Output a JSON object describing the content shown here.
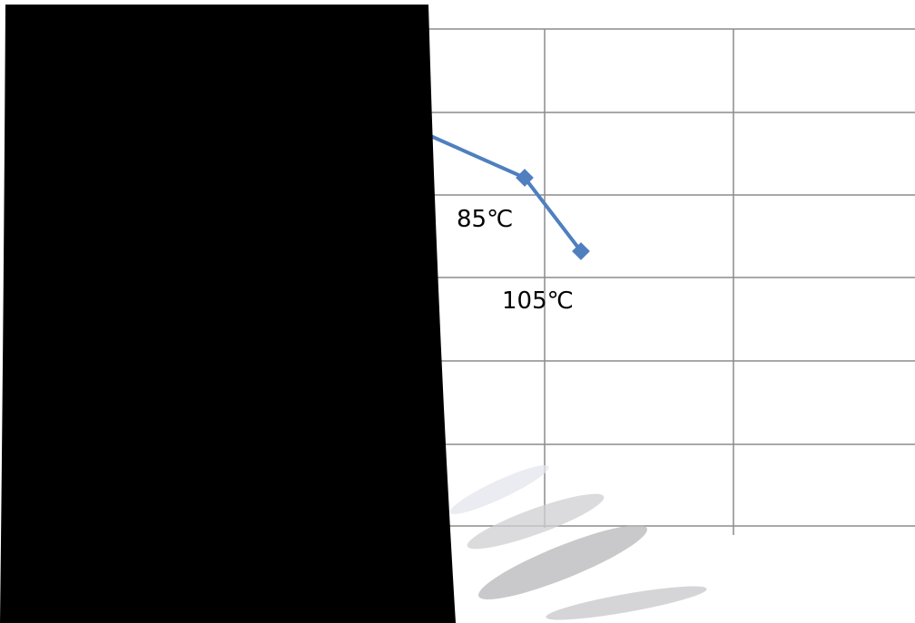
{
  "labels": [
    "85℃",
    "105℃"
  ]
}
